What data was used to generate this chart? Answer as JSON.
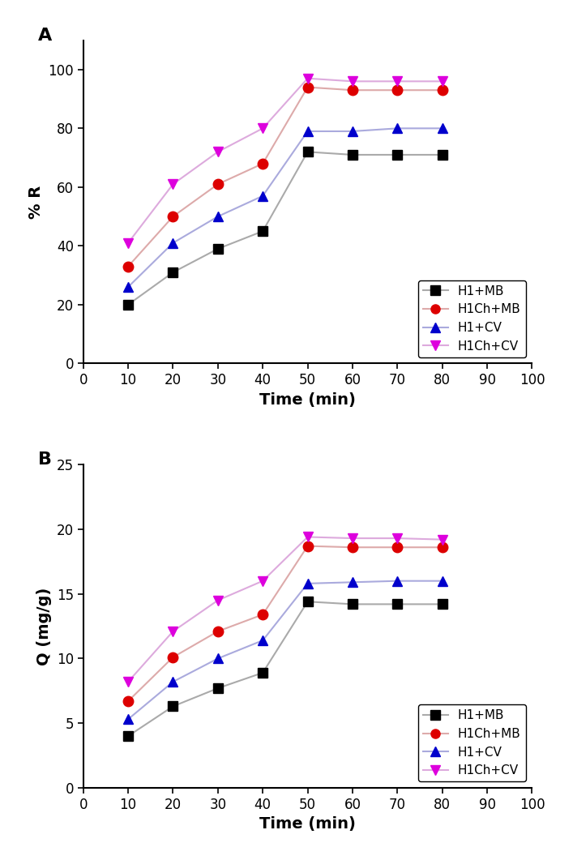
{
  "time": [
    10,
    20,
    30,
    40,
    50,
    60,
    70,
    80
  ],
  "panel_A": {
    "H1_MB": [
      20,
      31,
      39,
      45,
      72,
      71,
      71,
      71
    ],
    "H1Ch_MB": [
      33,
      50,
      61,
      68,
      94,
      93,
      93,
      93
    ],
    "H1_CV": [
      26,
      41,
      50,
      57,
      79,
      79,
      80,
      80
    ],
    "H1Ch_CV": [
      41,
      61,
      72,
      80,
      97,
      96,
      96,
      96
    ]
  },
  "panel_B": {
    "H1_MB": [
      4.0,
      6.3,
      7.7,
      8.9,
      14.4,
      14.2,
      14.2,
      14.2
    ],
    "H1Ch_MB": [
      6.7,
      10.1,
      12.1,
      13.4,
      18.7,
      18.6,
      18.6,
      18.6
    ],
    "H1_CV": [
      5.3,
      8.2,
      10.0,
      11.4,
      15.8,
      15.9,
      16.0,
      16.0
    ],
    "H1Ch_CV": [
      8.2,
      12.1,
      14.5,
      16.0,
      19.4,
      19.3,
      19.3,
      19.2
    ]
  },
  "marker_colors": {
    "H1_MB": "#000000",
    "H1Ch_MB": "#dd0000",
    "H1_CV": "#0000cc",
    "H1Ch_CV": "#dd00dd"
  },
  "line_colors": {
    "H1_MB": "#aaaaaa",
    "H1Ch_MB": "#ddaaaa",
    "H1_CV": "#aaaadd",
    "H1Ch_CV": "#ddaadd"
  },
  "markers": {
    "H1_MB": "s",
    "H1Ch_MB": "o",
    "H1_CV": "^",
    "H1Ch_CV": "v"
  },
  "labels": {
    "H1_MB": "H1+MB",
    "H1Ch_MB": "H1Ch+MB",
    "H1_CV": "H1+CV",
    "H1Ch_CV": "H1Ch+CV"
  },
  "panel_A_ylabel": "% R",
  "panel_B_ylabel": "Q (mg/g)",
  "xlabel": "Time (min)",
  "panel_A_ylim": [
    0,
    110
  ],
  "panel_B_ylim": [
    0,
    25
  ],
  "panel_A_yticks": [
    0,
    20,
    40,
    60,
    80,
    100
  ],
  "panel_B_yticks": [
    0,
    5,
    10,
    15,
    20,
    25
  ],
  "xlim": [
    0,
    100
  ],
  "xticks": [
    0,
    10,
    20,
    30,
    40,
    50,
    60,
    70,
    80,
    90,
    100
  ],
  "panel_A_label": "A",
  "panel_B_label": "B",
  "series_order": [
    "H1_MB",
    "H1Ch_MB",
    "H1_CV",
    "H1Ch_CV"
  ]
}
